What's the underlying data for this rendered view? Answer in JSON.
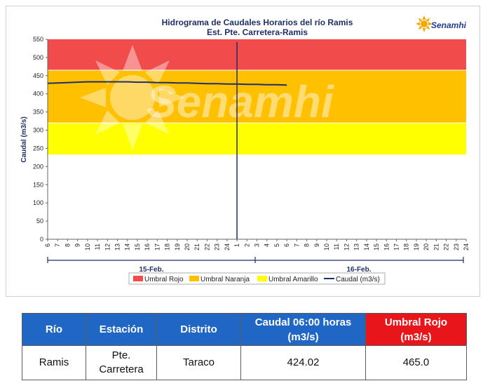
{
  "logo": {
    "text": "Senamhi",
    "icon": "sun-logo-icon",
    "watermark": "Senamhi"
  },
  "chart_data": {
    "type": "line",
    "title": "Hidrograma de Caudales Horarios del río Ramis",
    "subtitle": "Est. Pte. Carretera-Ramis",
    "ylabel": "Caudal  (m3/s)",
    "ylim": [
      0,
      550
    ],
    "yticks": [
      0,
      50,
      100,
      150,
      200,
      250,
      300,
      350,
      400,
      450,
      500,
      550
    ],
    "xtick_labels": [
      "6",
      "7",
      "8",
      "9",
      "10",
      "11",
      "12",
      "13",
      "14",
      "15",
      "16",
      "17",
      "18",
      "19",
      "20",
      "21",
      "22",
      "23",
      "24",
      "1",
      "2",
      "3",
      "4",
      "5",
      "6",
      "7",
      "8",
      "9",
      "10",
      "11",
      "12",
      "13",
      "14",
      "15",
      "16",
      "17",
      "18",
      "19",
      "20",
      "21",
      "22",
      "23",
      "24"
    ],
    "day_labels": [
      "15-Feb.",
      "16-Feb."
    ],
    "thresholds": [
      {
        "name": "Umbral Rojo",
        "from": 465,
        "to": 550,
        "color": "#f24b4b"
      },
      {
        "name": "Umbral Naranja",
        "from": 320,
        "to": 465,
        "color": "#ffc000"
      },
      {
        "name": "Umbral Amarillo",
        "from": 232,
        "to": 320,
        "color": "#ffff00"
      }
    ],
    "series": [
      {
        "name": "Caudal (m3/s)",
        "color": "#1f2f6b",
        "x": [
          0,
          1,
          2,
          3,
          4,
          5,
          6,
          7,
          8,
          9,
          10,
          11,
          12,
          13,
          14,
          15,
          16,
          17,
          18,
          19,
          20,
          21,
          22,
          23,
          24
        ],
        "values": [
          429,
          430,
          431,
          432,
          433,
          433,
          433,
          433,
          433,
          432,
          432,
          431,
          431,
          430,
          430,
          429,
          428,
          428,
          427,
          427,
          426,
          426,
          425,
          425,
          424
        ]
      }
    ],
    "now_marker_x": 19,
    "legend_position": "bottom",
    "grid": false
  },
  "table": {
    "headers": [
      "Río",
      "Estación",
      "Distrito",
      "Caudal  06:00 horas (m3/s)",
      "Umbral Rojo (m3/s)"
    ],
    "rows": [
      [
        "Ramis",
        "Pte. Carretera",
        "Taraco",
        "424.02",
        "465.0"
      ]
    ]
  }
}
